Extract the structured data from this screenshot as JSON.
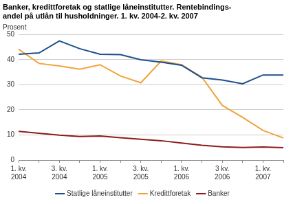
{
  "chart_data": {
    "type": "line",
    "title": [
      "Banker, kredittforetak og statlige låneinstitutter. Rentebindings-",
      "andel på utlån til husholdninger. 1. kv. 2004-2. kv. 2007"
    ],
    "y_label": "Prosent",
    "categories": [
      [
        "1. kv.",
        "2004"
      ],
      null,
      [
        "3. kv.",
        "2004"
      ],
      null,
      [
        "1. kv.",
        "2005"
      ],
      null,
      [
        "3. kv.",
        "2005"
      ],
      null,
      [
        "1. kv.",
        "2006"
      ],
      null,
      [
        "3 kv.",
        "2006"
      ],
      null,
      [
        "1. kv.",
        "2007"
      ],
      null
    ],
    "series": [
      {
        "name": "Statlige låneinstitutter",
        "color": "#1b4f8a",
        "values": [
          42.2,
          42.7,
          47.5,
          44.4,
          42.2,
          42.0,
          40.0,
          39.0,
          37.8,
          32.8,
          31.9,
          30.4,
          33.9,
          33.9
        ]
      },
      {
        "name": "Kredittforetak",
        "color": "#f2a23c",
        "values": [
          44.2,
          38.5,
          37.5,
          36.2,
          38.0,
          33.5,
          30.8,
          39.5,
          38.0,
          33.0,
          21.8,
          17.0,
          11.8,
          8.8
        ]
      },
      {
        "name": "Banker",
        "color": "#8c1c1c",
        "values": [
          11.4,
          10.7,
          9.9,
          9.4,
          9.6,
          8.9,
          8.3,
          7.7,
          6.8,
          5.9,
          5.3,
          5.0,
          5.2,
          4.9
        ]
      }
    ],
    "ylim": [
      0,
      50
    ],
    "yticks": [
      0,
      10,
      20,
      30,
      40,
      50
    ],
    "grid": true,
    "legend": "bottom"
  }
}
